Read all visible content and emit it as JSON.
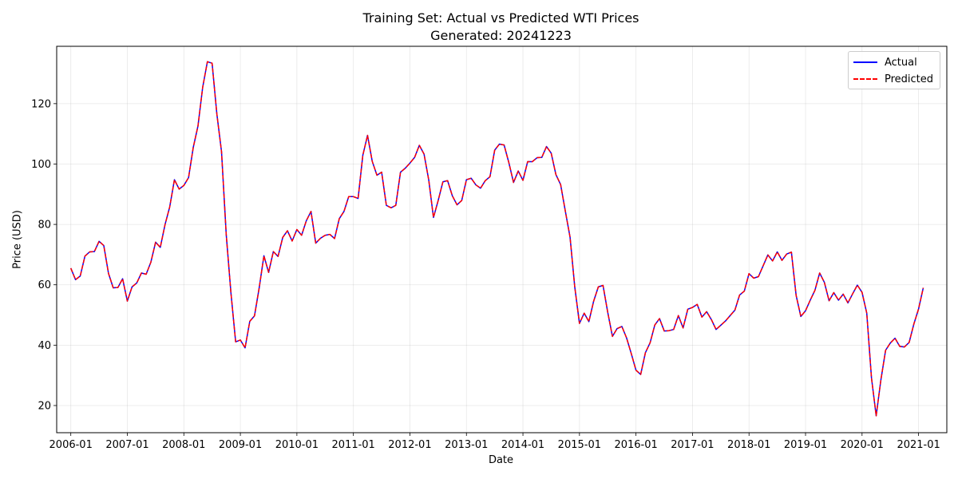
{
  "chart_data": {
    "type": "line",
    "title": "Training Set: Actual vs Predicted WTI Prices",
    "subtitle": "Generated: 20241223",
    "xlabel": "Date",
    "ylabel": "Price (USD)",
    "x_start": "2006-01",
    "x_end": "2021-03",
    "xlim": [
      "2005-10",
      "2021-07"
    ],
    "ylim": [
      11,
      139
    ],
    "x_ticks": [
      "2006-01",
      "2007-01",
      "2008-01",
      "2009-01",
      "2010-01",
      "2011-01",
      "2012-01",
      "2013-01",
      "2014-01",
      "2015-01",
      "2016-01",
      "2017-01",
      "2018-01",
      "2019-01",
      "2020-01",
      "2021-01"
    ],
    "y_ticks": [
      20,
      40,
      60,
      80,
      100,
      120
    ],
    "grid": true,
    "legend_position": "top-right",
    "series": [
      {
        "name": "Actual",
        "color": "#0000ff",
        "style": "solid",
        "values": [
          65.5,
          61.7,
          62.9,
          69.5,
          70.9,
          71.0,
          74.4,
          73.0,
          63.8,
          59.0,
          59.1,
          62.0,
          54.6,
          59.3,
          60.6,
          63.9,
          63.5,
          67.5,
          74.1,
          72.4,
          79.9,
          85.8,
          94.8,
          91.7,
          92.9,
          95.5,
          105.5,
          112.6,
          125.4,
          133.9,
          133.4,
          116.7,
          104.1,
          76.6,
          57.3,
          41.1,
          41.7,
          39.1,
          47.9,
          49.7,
          59.0,
          69.6,
          64.1,
          71.0,
          69.4,
          75.7,
          77.9,
          74.5,
          78.3,
          76.4,
          81.2,
          84.3,
          73.8,
          75.4,
          76.4,
          76.7,
          75.3,
          81.9,
          84.3,
          89.2,
          89.2,
          88.6,
          102.9,
          109.5,
          100.9,
          96.3,
          97.3,
          86.3,
          85.5,
          86.3,
          97.3,
          98.6,
          100.3,
          102.2,
          106.2,
          103.3,
          94.7,
          82.3,
          87.9,
          94.1,
          94.5,
          89.5,
          86.5,
          87.9,
          94.8,
          95.3,
          93.1,
          92.0,
          94.5,
          95.8,
          104.6,
          106.6,
          106.3,
          100.5,
          93.9,
          97.7,
          94.6,
          100.8,
          100.8,
          102.1,
          102.2,
          105.8,
          103.6,
          96.5,
          93.2,
          84.4,
          75.8,
          59.3,
          47.2,
          50.6,
          47.8,
          54.5,
          59.3,
          59.8,
          50.9,
          42.9,
          45.5,
          46.2,
          42.4,
          37.2,
          31.7,
          30.3,
          37.5,
          40.8,
          46.7,
          48.8,
          44.7,
          44.8,
          45.2,
          49.8,
          45.7,
          51.9,
          52.5,
          53.5,
          49.3,
          51.1,
          48.5,
          45.2,
          46.6,
          48.0,
          49.8,
          51.6,
          56.6,
          57.9,
          63.7,
          62.2,
          62.7,
          66.3,
          69.9,
          67.9,
          70.9,
          68.1,
          70.2,
          70.8,
          56.5,
          49.5,
          51.4,
          54.9,
          58.2,
          63.9,
          60.8,
          54.7,
          57.4,
          54.9,
          56.9,
          54.0,
          57.0,
          59.9,
          57.5,
          50.6,
          29.2,
          16.6,
          28.5,
          38.3,
          40.7,
          42.3,
          39.6,
          39.4,
          40.9,
          47.0,
          52.0,
          59.0
        ]
      },
      {
        "name": "Predicted",
        "color": "#ff0000",
        "style": "dashed",
        "values": [
          65.5,
          61.7,
          62.9,
          69.5,
          70.9,
          71.0,
          74.4,
          73.0,
          63.8,
          59.0,
          59.1,
          62.0,
          54.6,
          59.3,
          60.6,
          63.9,
          63.5,
          67.5,
          74.1,
          72.4,
          79.9,
          85.8,
          94.8,
          91.7,
          92.9,
          95.5,
          105.5,
          112.6,
          125.4,
          133.9,
          133.4,
          116.7,
          104.1,
          76.6,
          57.3,
          41.1,
          41.7,
          39.1,
          47.9,
          49.7,
          59.0,
          69.6,
          64.1,
          71.0,
          69.4,
          75.7,
          77.9,
          74.5,
          78.3,
          76.4,
          81.2,
          84.3,
          73.8,
          75.4,
          76.4,
          76.7,
          75.3,
          81.9,
          84.3,
          89.2,
          89.2,
          88.6,
          102.9,
          109.5,
          100.9,
          96.3,
          97.3,
          86.3,
          85.5,
          86.3,
          97.3,
          98.6,
          100.3,
          102.2,
          106.2,
          103.3,
          94.7,
          82.3,
          87.9,
          94.1,
          94.5,
          89.5,
          86.5,
          87.9,
          94.8,
          95.3,
          93.1,
          92.0,
          94.5,
          95.8,
          104.6,
          106.6,
          106.3,
          100.5,
          93.9,
          97.7,
          94.6,
          100.8,
          100.8,
          102.1,
          102.2,
          105.8,
          103.6,
          96.5,
          93.2,
          84.4,
          75.8,
          59.3,
          47.2,
          50.6,
          47.8,
          54.5,
          59.3,
          59.8,
          50.9,
          42.9,
          45.5,
          46.2,
          42.4,
          37.2,
          31.7,
          30.3,
          37.5,
          40.8,
          46.7,
          48.8,
          44.7,
          44.8,
          45.2,
          49.8,
          45.7,
          51.9,
          52.5,
          53.5,
          49.3,
          51.1,
          48.5,
          45.2,
          46.6,
          48.0,
          49.8,
          51.6,
          56.6,
          57.9,
          63.7,
          62.2,
          62.7,
          66.3,
          69.9,
          67.9,
          70.9,
          68.1,
          70.2,
          70.8,
          56.5,
          49.5,
          51.4,
          54.9,
          58.2,
          63.9,
          60.8,
          54.7,
          57.4,
          54.9,
          56.9,
          54.0,
          57.0,
          59.9,
          57.5,
          50.6,
          29.2,
          16.6,
          28.5,
          38.3,
          40.7,
          42.3,
          39.6,
          39.4,
          40.9,
          47.0,
          52.0,
          59.0
        ]
      }
    ]
  }
}
